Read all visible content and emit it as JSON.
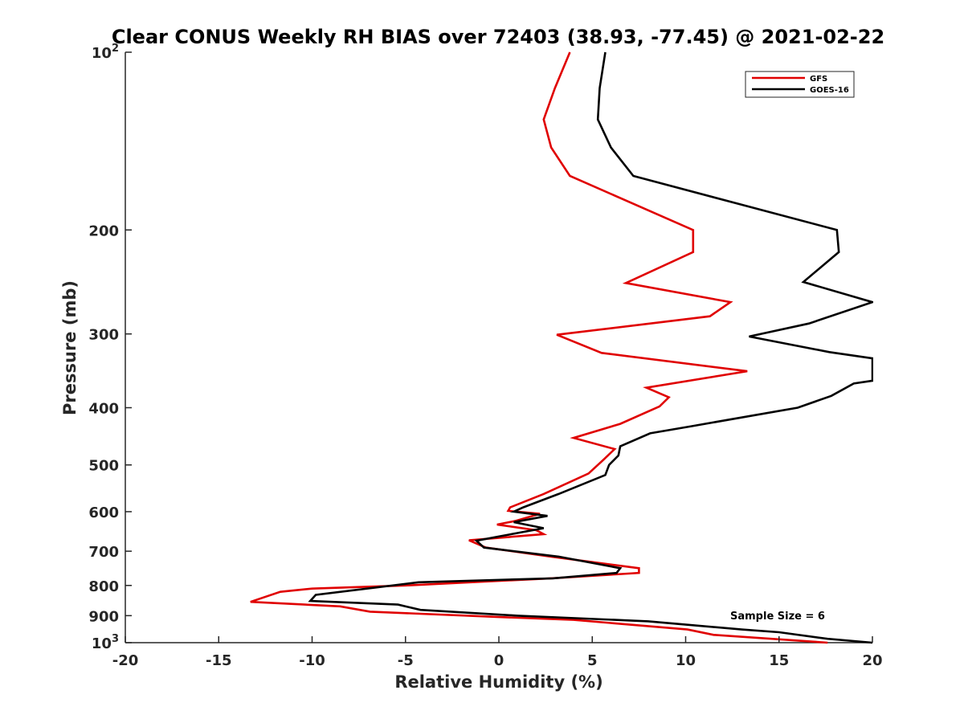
{
  "chart_data": {
    "type": "line",
    "title": "Clear CONUS Weekly RH BIAS over 72403 (38.93, -77.45) @ 2021-02-22",
    "xlabel": "Relative Humidity (%)",
    "ylabel": "Pressure (mb)",
    "xlim": [
      -20,
      20
    ],
    "ylim": [
      100,
      1000
    ],
    "y_scale": "log",
    "y_reversed": true,
    "grid": false,
    "legend_position": "top-right",
    "x_ticks": [
      "-20",
      "-15",
      "-10",
      "-5",
      "0",
      "5",
      "10",
      "15",
      "20"
    ],
    "y_ticks": [
      {
        "base": "10",
        "sup": "2"
      },
      {
        "base": "200",
        "sup": ""
      },
      {
        "base": "300",
        "sup": ""
      },
      {
        "base": "400",
        "sup": ""
      },
      {
        "base": "500",
        "sup": ""
      },
      {
        "base": "600",
        "sup": ""
      },
      {
        "base": "700",
        "sup": ""
      },
      {
        "base": "800",
        "sup": ""
      },
      {
        "base": "900",
        "sup": ""
      },
      {
        "base": "10",
        "sup": "3"
      }
    ],
    "annotation": "Sample Size = 6",
    "series": [
      {
        "name": "GFS",
        "color": "#e00000",
        "points": [
          [
            3.8,
            100
          ],
          [
            3.0,
            115
          ],
          [
            2.4,
            130
          ],
          [
            2.8,
            145
          ],
          [
            3.8,
            162
          ],
          [
            10.4,
            200
          ],
          [
            10.4,
            218
          ],
          [
            6.8,
            246
          ],
          [
            12.4,
            265
          ],
          [
            11.3,
            280
          ],
          [
            3.1,
            301
          ],
          [
            5.5,
            323
          ],
          [
            13.3,
            347
          ],
          [
            7.9,
            370
          ],
          [
            9.1,
            384
          ],
          [
            8.6,
            398
          ],
          [
            6.5,
            426
          ],
          [
            4.0,
            450
          ],
          [
            6.2,
            470
          ],
          [
            5.6,
            490
          ],
          [
            4.8,
            517
          ],
          [
            2.4,
            560
          ],
          [
            0.6,
            590
          ],
          [
            0.5,
            598
          ],
          [
            2.2,
            605
          ],
          [
            0.9,
            622
          ],
          [
            -0.1,
            631
          ],
          [
            2.0,
            645
          ],
          [
            2.4,
            655
          ],
          [
            -1.6,
            671
          ],
          [
            -0.7,
            690
          ],
          [
            2.8,
            715
          ],
          [
            7.5,
            748
          ],
          [
            7.5,
            762
          ],
          [
            2.8,
            778
          ],
          [
            -5.0,
            800
          ],
          [
            -10.0,
            810
          ],
          [
            -11.7,
            820
          ],
          [
            -13.3,
            853
          ],
          [
            -8.5,
            868
          ],
          [
            -6.9,
            886
          ],
          [
            0.0,
            905
          ],
          [
            4.0,
            915
          ],
          [
            10.1,
            950
          ],
          [
            11.5,
            970
          ],
          [
            17.6,
            1000
          ]
        ]
      },
      {
        "name": "GOES-16",
        "color": "#000000",
        "points": [
          [
            5.7,
            100
          ],
          [
            5.4,
            115
          ],
          [
            5.3,
            130
          ],
          [
            6.0,
            145
          ],
          [
            7.2,
            162
          ],
          [
            18.1,
            200
          ],
          [
            18.2,
            218
          ],
          [
            16.3,
            245
          ],
          [
            20.0,
            265
          ],
          [
            16.6,
            288
          ],
          [
            13.4,
            303
          ],
          [
            17.7,
            322
          ],
          [
            20.0,
            330
          ],
          [
            20.0,
            360
          ],
          [
            19.0,
            364
          ],
          [
            17.8,
            382
          ],
          [
            16.0,
            400
          ],
          [
            10.3,
            430
          ],
          [
            8.1,
            442
          ],
          [
            6.5,
            465
          ],
          [
            6.4,
            482
          ],
          [
            5.9,
            500
          ],
          [
            5.7,
            520
          ],
          [
            3.2,
            560
          ],
          [
            1.3,
            590
          ],
          [
            0.8,
            600
          ],
          [
            2.6,
            610
          ],
          [
            0.8,
            625
          ],
          [
            2.4,
            640
          ],
          [
            0.1,
            660
          ],
          [
            -1.2,
            672
          ],
          [
            -0.8,
            690
          ],
          [
            3.2,
            715
          ],
          [
            6.5,
            748
          ],
          [
            6.3,
            762
          ],
          [
            2.9,
            778
          ],
          [
            -4.3,
            790
          ],
          [
            -9.8,
            830
          ],
          [
            -10.1,
            850
          ],
          [
            -5.4,
            862
          ],
          [
            -4.2,
            880
          ],
          [
            1.0,
            900
          ],
          [
            8.0,
            920
          ],
          [
            13.0,
            950
          ],
          [
            15.0,
            960
          ],
          [
            17.6,
            985
          ],
          [
            20.0,
            1000
          ]
        ]
      }
    ]
  }
}
